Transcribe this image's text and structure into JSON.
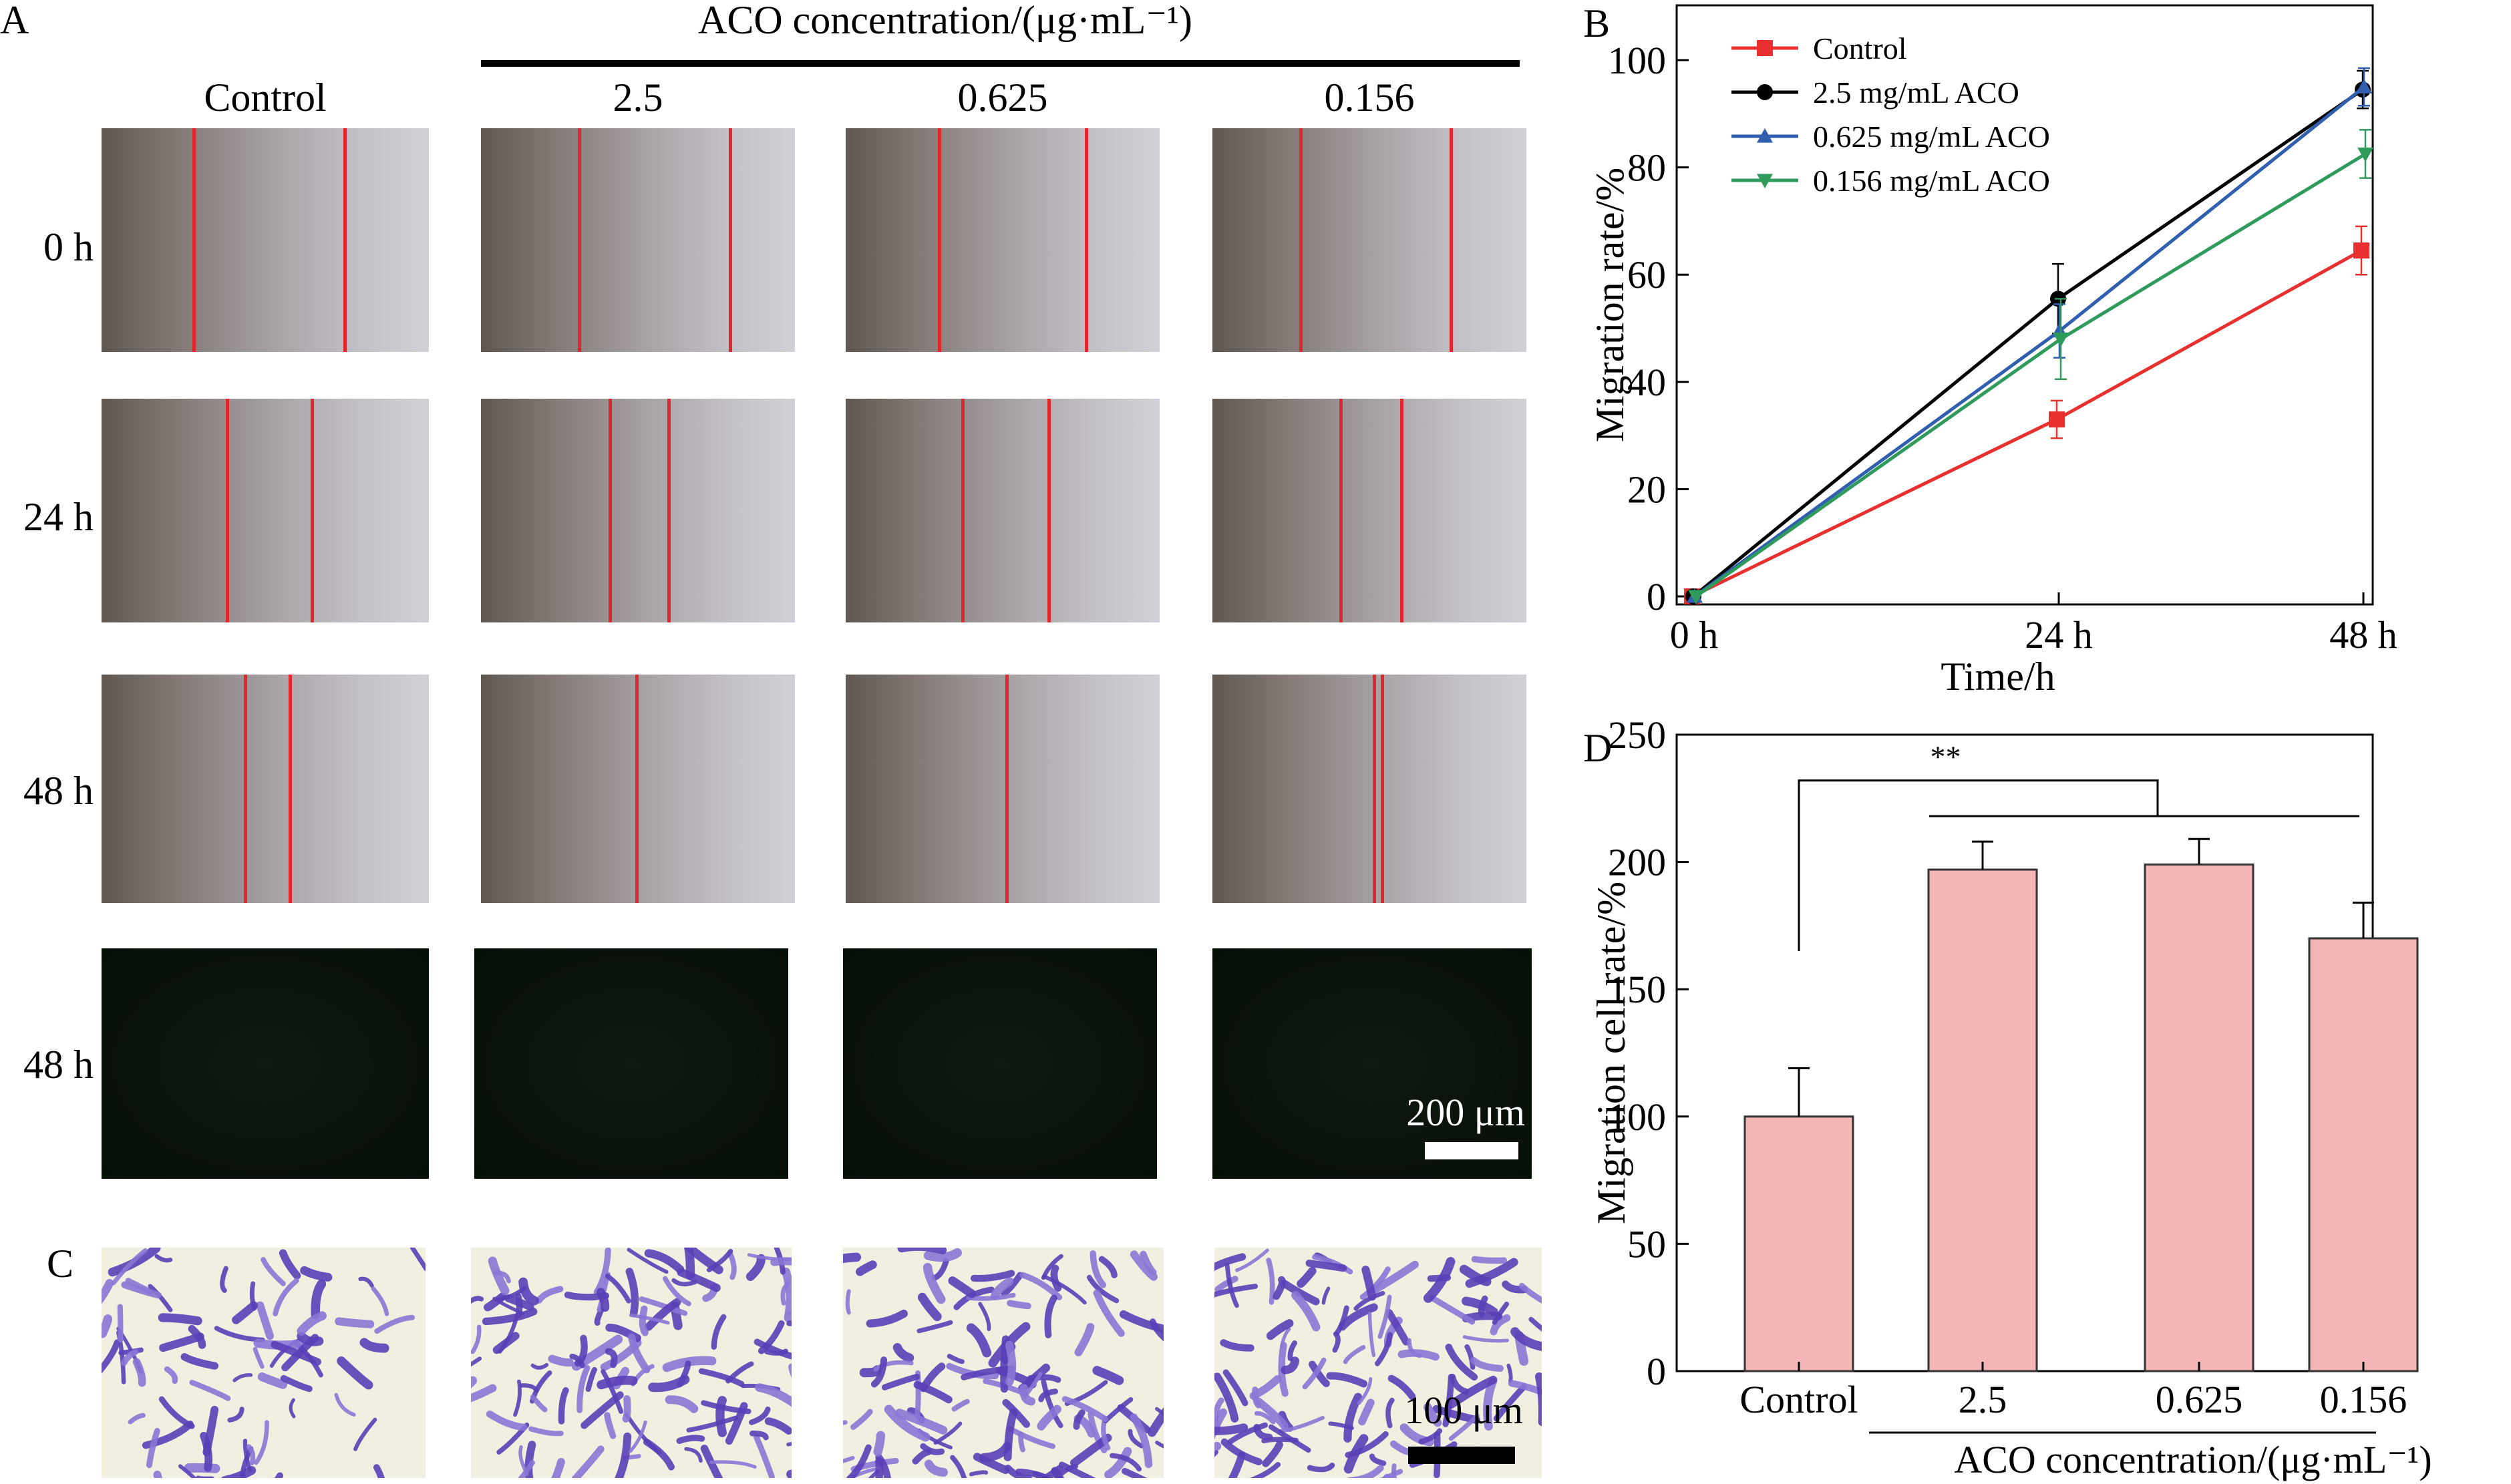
{
  "panel_letters": {
    "a": "A",
    "b": "B",
    "c": "C",
    "d": "D"
  },
  "panel_a": {
    "header": "ACO concentration/(μg·mL⁻¹)",
    "columns": [
      "Control",
      "2.5",
      "0.625",
      "0.156"
    ],
    "rows": [
      "0 h",
      "24 h",
      "48 h",
      "48 h"
    ],
    "scale_fluorescence": "200 μm",
    "scale_crystal": "100 μm",
    "colors": {
      "scratch_line": "#e2262b"
    }
  },
  "chart_data": [
    {
      "id": "B",
      "type": "line",
      "x": [
        "0 h",
        "24 h",
        "48 h"
      ],
      "xlabel": "Time/h",
      "ylabel": "Migration rate/%",
      "ylim": [
        0,
        100
      ],
      "yticks": [
        "0",
        "20",
        "40",
        "60",
        "80",
        "100"
      ],
      "legend_position": "top-left",
      "series": [
        {
          "name": "Control",
          "values": [
            0,
            33,
            64.5
          ],
          "errors": [
            0,
            3.5,
            4.5
          ],
          "color": "#e8302f",
          "marker": "square"
        },
        {
          "name": "2.5 mg/mL ACO",
          "values": [
            0,
            55.5,
            94.5
          ],
          "errors": [
            0,
            6.5,
            3.5
          ],
          "color": "#000000",
          "marker": "circle"
        },
        {
          "name": "0.625 mg/mL ACO",
          "values": [
            0,
            49.5,
            95
          ],
          "errors": [
            0,
            5,
            3.5
          ],
          "color": "#2f5fae",
          "marker": "triangle-up"
        },
        {
          "name": "0.156 mg/mL ACO",
          "values": [
            0,
            48,
            82.5
          ],
          "errors": [
            0,
            7.5,
            4.5
          ],
          "color": "#2e9a5c",
          "marker": "triangle-down"
        }
      ]
    },
    {
      "id": "D",
      "type": "bar",
      "categories": [
        "Control",
        "2.5",
        "0.625",
        "0.156"
      ],
      "values": [
        100,
        197,
        199,
        170
      ],
      "errors": [
        19,
        11,
        10,
        14
      ],
      "xlabel": "ACO concentration/(μg·mL⁻¹)",
      "ylabel": "Migration cell rate/%",
      "ylim": [
        0,
        250
      ],
      "yticks": [
        "0",
        "50",
        "100",
        "150",
        "200",
        "250"
      ],
      "significance": "**",
      "colors": {
        "bar_fill": "#f3b6b4",
        "bar_edge": "#333333"
      }
    }
  ]
}
